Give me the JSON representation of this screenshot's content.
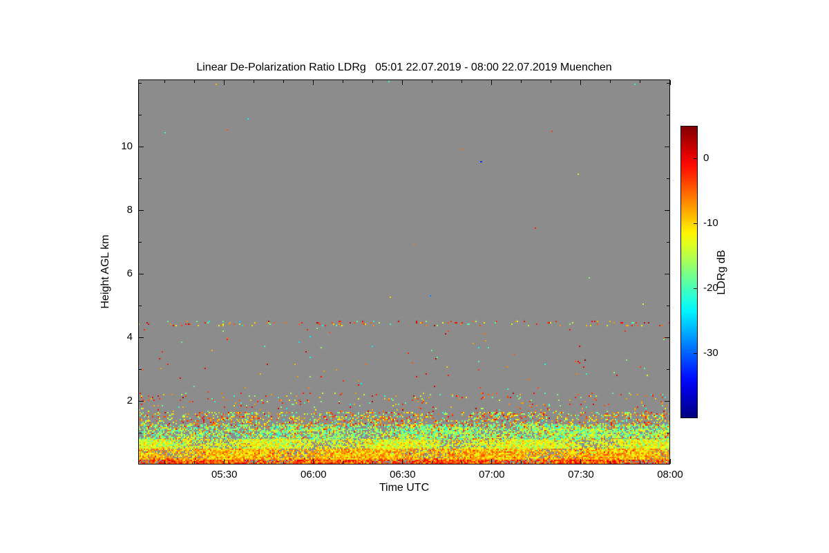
{
  "chart_data": {
    "type": "heatmap",
    "title": "Linear De-Polarization Ratio LDRg   05:01 22.07.2019 - 08:00 22.07.2019 Muenchen",
    "quantity": "Linear De-Polarization Ratio LDRg",
    "start": "05:01 22.07.2019",
    "end": "08:00 22.07.2019",
    "station": "Muenchen",
    "xlabel": "Time UTC",
    "ylabel": "Height AGL km",
    "x_start_min": 301,
    "x_end_min": 480,
    "x_ticks": [
      {
        "label": "05:30",
        "minute": 330
      },
      {
        "label": "06:00",
        "minute": 360
      },
      {
        "label": "06:30",
        "minute": 390
      },
      {
        "label": "07:00",
        "minute": 420
      },
      {
        "label": "07:30",
        "minute": 450
      },
      {
        "label": "08:00",
        "minute": 480
      }
    ],
    "x_minor_step_min": 10,
    "ylim_km": [
      0,
      12.11
    ],
    "y_ticks": [
      {
        "label": "2",
        "km": 2
      },
      {
        "label": "4",
        "km": 4
      },
      {
        "label": "6",
        "km": 6
      },
      {
        "label": "8",
        "km": 8
      },
      {
        "label": "10",
        "km": 10
      }
    ],
    "y_minor_step_km": 1,
    "no_data_color": "#8c8c8c",
    "grid": false,
    "colorbar": {
      "label": "LDRg dB",
      "vmin": -40,
      "vmax": 5,
      "colormap": "jet",
      "ticks": [
        {
          "label": "0",
          "value": 0
        },
        {
          "label": "-10",
          "value": -10
        },
        {
          "label": "-20",
          "value": -20
        },
        {
          "label": "-30",
          "value": -30
        }
      ]
    },
    "bands": [
      {
        "name": "surface-layer",
        "h_min": 0.0,
        "h_max": 0.18,
        "density": 0.96,
        "mix": [
          {
            "v": -4,
            "w": 0.4,
            "sd": 2.0
          },
          {
            "v": -1,
            "w": 0.3,
            "sd": 1.5
          },
          {
            "v": -8,
            "w": 0.3,
            "sd": 2.0
          }
        ]
      },
      {
        "name": "yellow-layer",
        "h_min": 0.18,
        "h_max": 0.5,
        "density": 0.93,
        "mix": [
          {
            "v": -9,
            "w": 0.45,
            "sd": 2.0
          },
          {
            "v": -6,
            "w": 0.3,
            "sd": 2.0
          },
          {
            "v": -12,
            "w": 0.25,
            "sd": 2.0
          }
        ]
      },
      {
        "name": "green-layer",
        "h_min": 0.5,
        "h_max": 0.8,
        "density": 0.85,
        "mix": [
          {
            "v": -13,
            "w": 0.4,
            "sd": 2.0
          },
          {
            "v": -10,
            "w": 0.3,
            "sd": 2.0
          },
          {
            "v": -16,
            "w": 0.3,
            "sd": 2.0
          }
        ]
      },
      {
        "name": "cyan-layer",
        "h_min": 0.8,
        "h_max": 1.25,
        "density": 0.55,
        "x_ramp": [
          0.8,
          1.3
        ],
        "mix": [
          {
            "v": -19,
            "w": 0.45,
            "sd": 2.0
          },
          {
            "v": -15,
            "w": 0.3,
            "sd": 2.0
          },
          {
            "v": -9,
            "w": 0.15,
            "sd": 2.5
          },
          {
            "v": -4,
            "w": 0.1,
            "sd": 2.0
          }
        ]
      },
      {
        "name": "bright-green-streak",
        "h_min": 0.85,
        "h_max": 1.12,
        "density": 0.45,
        "x_ramp": [
          0.2,
          1.1
        ],
        "mix": [
          {
            "v": -16,
            "w": 0.5,
            "sd": 1.5
          },
          {
            "v": -13,
            "w": 0.3,
            "sd": 1.5
          },
          {
            "v": -19,
            "w": 0.2,
            "sd": 1.5
          }
        ]
      },
      {
        "name": "mixed-layer-top",
        "h_min": 1.25,
        "h_max": 1.65,
        "density": 0.3,
        "mix": [
          {
            "v": -8,
            "w": 0.3,
            "sd": 3.0
          },
          {
            "v": -18,
            "w": 0.28,
            "sd": 2.0
          },
          {
            "v": -3,
            "w": 0.22,
            "sd": 2.0
          },
          {
            "v": -12,
            "w": 0.2,
            "sd": 2.0
          }
        ]
      },
      {
        "name": "sparse-below-2km",
        "h_min": 1.65,
        "h_max": 2.25,
        "density": 0.05,
        "mix": [
          {
            "v": -8,
            "w": 0.35,
            "sd": 3.0
          },
          {
            "v": -18,
            "w": 0.3,
            "sd": 3.0
          },
          {
            "v": -2,
            "w": 0.35,
            "sd": 2.0
          }
        ]
      },
      {
        "name": "free-troposphere-sparse",
        "h_min": 2.25,
        "h_max": 4.3,
        "density": 0.004,
        "mix": [
          {
            "v": -6,
            "w": 0.4,
            "sd": 4.0
          },
          {
            "v": -18,
            "w": 0.3,
            "sd": 3.0
          },
          {
            "v": -1,
            "w": 0.3,
            "sd": 2.0
          }
        ]
      },
      {
        "name": "elevated-speckle-line-4p45km",
        "h_min": 4.36,
        "h_max": 4.52,
        "density": 0.09,
        "mix": [
          {
            "v": -5,
            "w": 0.3,
            "sd": 3.0
          },
          {
            "v": -10,
            "w": 0.25,
            "sd": 2.0
          },
          {
            "v": -18,
            "w": 0.2,
            "sd": 3.0
          },
          {
            "v": -1,
            "w": 0.25,
            "sd": 2.0
          }
        ]
      },
      {
        "name": "upper-isolated",
        "h_min": 4.6,
        "h_max": 12.11,
        "density": 0.00018,
        "mix": [
          {
            "v": -18,
            "w": 0.5,
            "sd": 6.0
          },
          {
            "v": -5,
            "w": 0.5,
            "sd": 4.0
          }
        ]
      }
    ],
    "point_features": [
      {
        "minute": 416,
        "height_km": 9.55,
        "value_db": -32
      }
    ]
  }
}
